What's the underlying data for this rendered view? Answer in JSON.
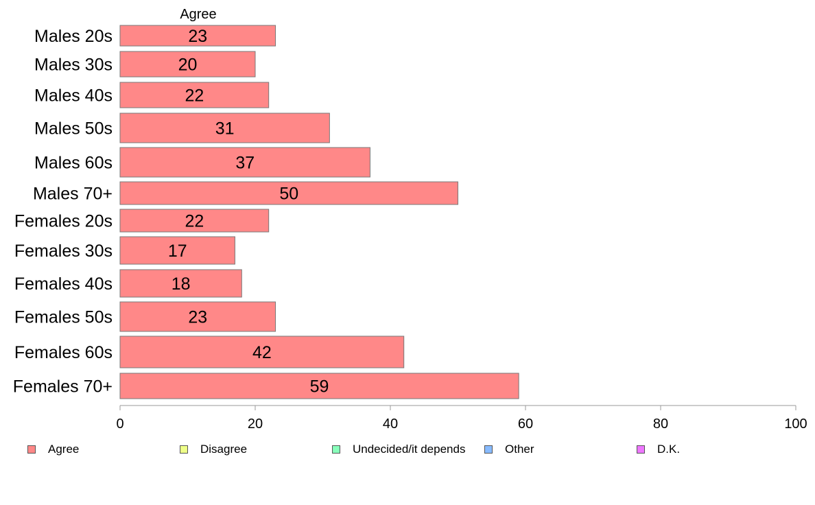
{
  "chart_data": {
    "type": "bar",
    "orientation": "horizontal",
    "column_header": "Agree",
    "categories": [
      "Males 20s",
      "Males 30s",
      "Males 40s",
      "Males 50s",
      "Males 60s",
      "Males 70+",
      "Females 20s",
      "Females 30s",
      "Females 40s",
      "Females 50s",
      "Females 60s",
      "Females 70+"
    ],
    "series": [
      {
        "name": "Agree",
        "color": "#FF8888",
        "values": [
          23,
          20,
          22,
          31,
          37,
          50,
          22,
          17,
          18,
          23,
          42,
          59
        ]
      }
    ],
    "data_labels": [
      "23",
      "20",
      "22",
      "31",
      "37",
      "50",
      "22",
      "17",
      "18",
      "23",
      "42",
      "59"
    ],
    "xlim": [
      0,
      100
    ],
    "xticks": [
      0,
      20,
      40,
      60,
      80,
      100
    ],
    "xtick_labels": [
      "0",
      "20",
      "40",
      "60",
      "80",
      "100"
    ],
    "grid": false,
    "legend_position": "bottom",
    "legend": [
      {
        "label": "Agree",
        "color": "#FF8888"
      },
      {
        "label": "Disagree",
        "color": "#EEFF88"
      },
      {
        "label": "Undecided/it depends",
        "color": "#88FFBB"
      },
      {
        "label": "Other",
        "color": "#88BBFF"
      },
      {
        "label": "D.K.",
        "color": "#EE77FF"
      }
    ]
  }
}
